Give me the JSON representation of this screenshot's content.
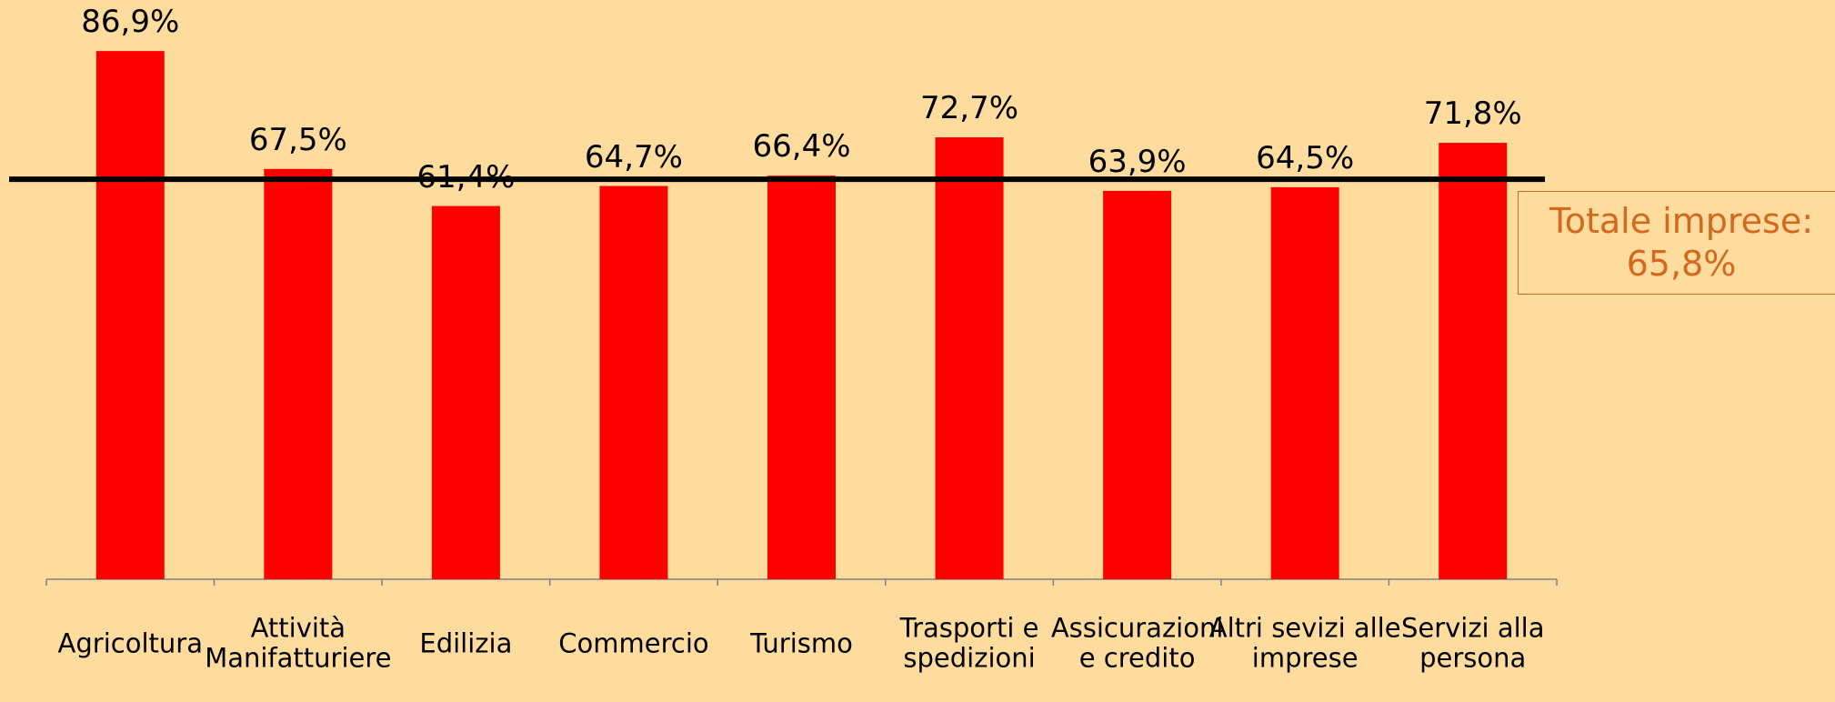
{
  "chart_data": {
    "type": "bar",
    "categories": [
      "Agricoltura",
      "Attività\nManifatturiere",
      "Edilizia",
      "Commercio",
      "Turismo",
      "Trasporti e\nspedizioni",
      "Assicurazioni\ne credito",
      "Altri sevizi alle\nimprese",
      "Servizi alla\npersona"
    ],
    "values": [
      86.9,
      67.5,
      61.4,
      64.7,
      66.4,
      72.7,
      63.9,
      64.5,
      71.8
    ],
    "value_labels": [
      "86,9%",
      "67,5%",
      "61,4%",
      "64,7%",
      "66,4%",
      "72,7%",
      "63,9%",
      "64,5%",
      "71,8%"
    ],
    "color": "#ff0000",
    "ylim": [
      0,
      95
    ],
    "reference_line": {
      "value": 65.8,
      "label": "Totale imprese:\n65,8%",
      "color": "#000000"
    }
  }
}
